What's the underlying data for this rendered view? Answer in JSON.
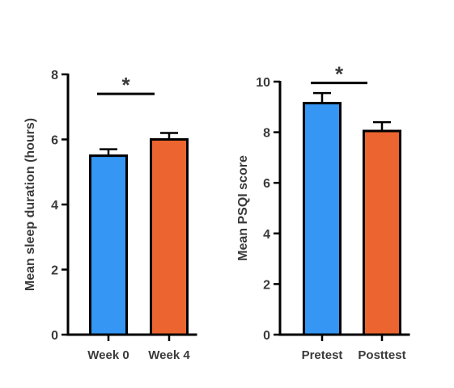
{
  "chart_data": [
    {
      "type": "bar",
      "ylabel": "Mean sleep duration (hours)",
      "xlabel": "",
      "categories": [
        "Week 0",
        "Week 4"
      ],
      "values": [
        5.5,
        6.0
      ],
      "errors": [
        0.2,
        0.2
      ],
      "colors": [
        "#3596F3",
        "#EC642F"
      ],
      "ylim": [
        0,
        8
      ],
      "yticks": [
        0,
        2,
        4,
        6,
        8
      ],
      "significance": {
        "from": 0,
        "to": 1,
        "label": "*",
        "y": 7.4
      }
    },
    {
      "type": "bar",
      "ylabel": "Mean PSQI score",
      "xlabel": "",
      "categories": [
        "Pretest",
        "Posttest"
      ],
      "values": [
        9.15,
        8.05
      ],
      "errors": [
        0.4,
        0.35
      ],
      "colors": [
        "#3596F3",
        "#EC642F"
      ],
      "ylim": [
        0,
        10
      ],
      "yticks": [
        0,
        2,
        4,
        6,
        8,
        10
      ],
      "significance": {
        "from": 0,
        "to": 1,
        "label": "*",
        "y": 9.95
      }
    }
  ]
}
